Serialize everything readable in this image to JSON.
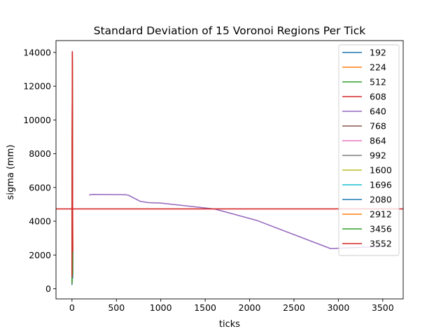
{
  "chart_data": {
    "type": "line",
    "title": "Standard Deviation of 15 Voronoi Regions Per Tick",
    "xlabel": "ticks",
    "ylabel": "sigma (mm)",
    "xlim": [
      -180,
      3730
    ],
    "ylim": [
      -600,
      14700
    ],
    "xticks": [
      0,
      500,
      1000,
      1500,
      2000,
      2500,
      3000,
      3500
    ],
    "yticks": [
      0,
      2000,
      4000,
      6000,
      8000,
      10000,
      12000,
      14000
    ],
    "grid": false,
    "legend_position": "top-right",
    "reference_line": {
      "y": 4730,
      "color": "#d62728"
    },
    "series": [
      {
        "name": "192",
        "color": "#1f77b4",
        "x": [
          0,
          2,
          4,
          6,
          8
        ],
        "y": [
          300,
          6500,
          13000,
          9000,
          1200
        ]
      },
      {
        "name": "224",
        "color": "#ff7f0e",
        "x": [
          0,
          2,
          4,
          6,
          8
        ],
        "y": [
          400,
          7000,
          13600,
          8500,
          1500
        ]
      },
      {
        "name": "512",
        "color": "#2ca02c",
        "x": [
          0,
          2,
          4,
          6,
          8
        ],
        "y": [
          350,
          5000,
          12500,
          7000,
          900
        ]
      },
      {
        "name": "608",
        "color": "#d62728",
        "x": [
          0,
          2,
          4,
          6,
          8
        ],
        "y": [
          500,
          7500,
          14050,
          10400,
          2000
        ]
      },
      {
        "name": "640",
        "color": "#9467bd",
        "x": [
          192,
          224,
          512,
          608,
          640,
          768,
          864,
          992,
          1600,
          1696,
          2080,
          2912,
          3456,
          3552
        ],
        "y": [
          5550,
          5590,
          5580,
          5570,
          5530,
          5180,
          5100,
          5080,
          4730,
          4600,
          4050,
          2380,
          2500,
          2560
        ]
      },
      {
        "name": "768",
        "color": "#8c564b",
        "x": [
          0,
          2,
          4,
          6,
          8
        ],
        "y": [
          450,
          6000,
          13900,
          9500,
          1800
        ]
      },
      {
        "name": "864",
        "color": "#e377c2",
        "x": [
          0,
          2,
          4,
          6,
          8
        ],
        "y": [
          380,
          5500,
          13400,
          8000,
          1100
        ]
      },
      {
        "name": "992",
        "color": "#7f7f7f",
        "x": [
          0,
          2,
          4,
          6,
          8
        ],
        "y": [
          420,
          6200,
          13700,
          9200,
          1400
        ]
      },
      {
        "name": "1600",
        "color": "#bcbd22",
        "x": [
          0,
          2,
          4,
          6,
          8
        ],
        "y": [
          600,
          8000,
          13100,
          10000,
          2500
        ]
      },
      {
        "name": "1696",
        "color": "#17becf",
        "x": [
          0,
          2,
          4,
          6,
          8
        ],
        "y": [
          250,
          4500,
          12300,
          6500,
          700
        ]
      },
      {
        "name": "2080",
        "color": "#1f77b4",
        "x": [
          0,
          2,
          4,
          6,
          8
        ],
        "y": [
          220,
          4000,
          11000,
          6000,
          600
        ]
      },
      {
        "name": "2912",
        "color": "#ff7f0e",
        "x": [
          0,
          2,
          4,
          6,
          8
        ],
        "y": [
          300,
          5200,
          13200,
          7800,
          1000
        ]
      },
      {
        "name": "3456",
        "color": "#2ca02c",
        "x": [
          0,
          2,
          4,
          6,
          8
        ],
        "y": [
          330,
          4800,
          12600,
          7300,
          800
        ]
      },
      {
        "name": "3552",
        "color": "#d62728",
        "x": [
          0,
          2,
          4,
          6,
          8
        ],
        "y": [
          700,
          9000,
          14000,
          10400,
          2200
        ]
      }
    ]
  }
}
